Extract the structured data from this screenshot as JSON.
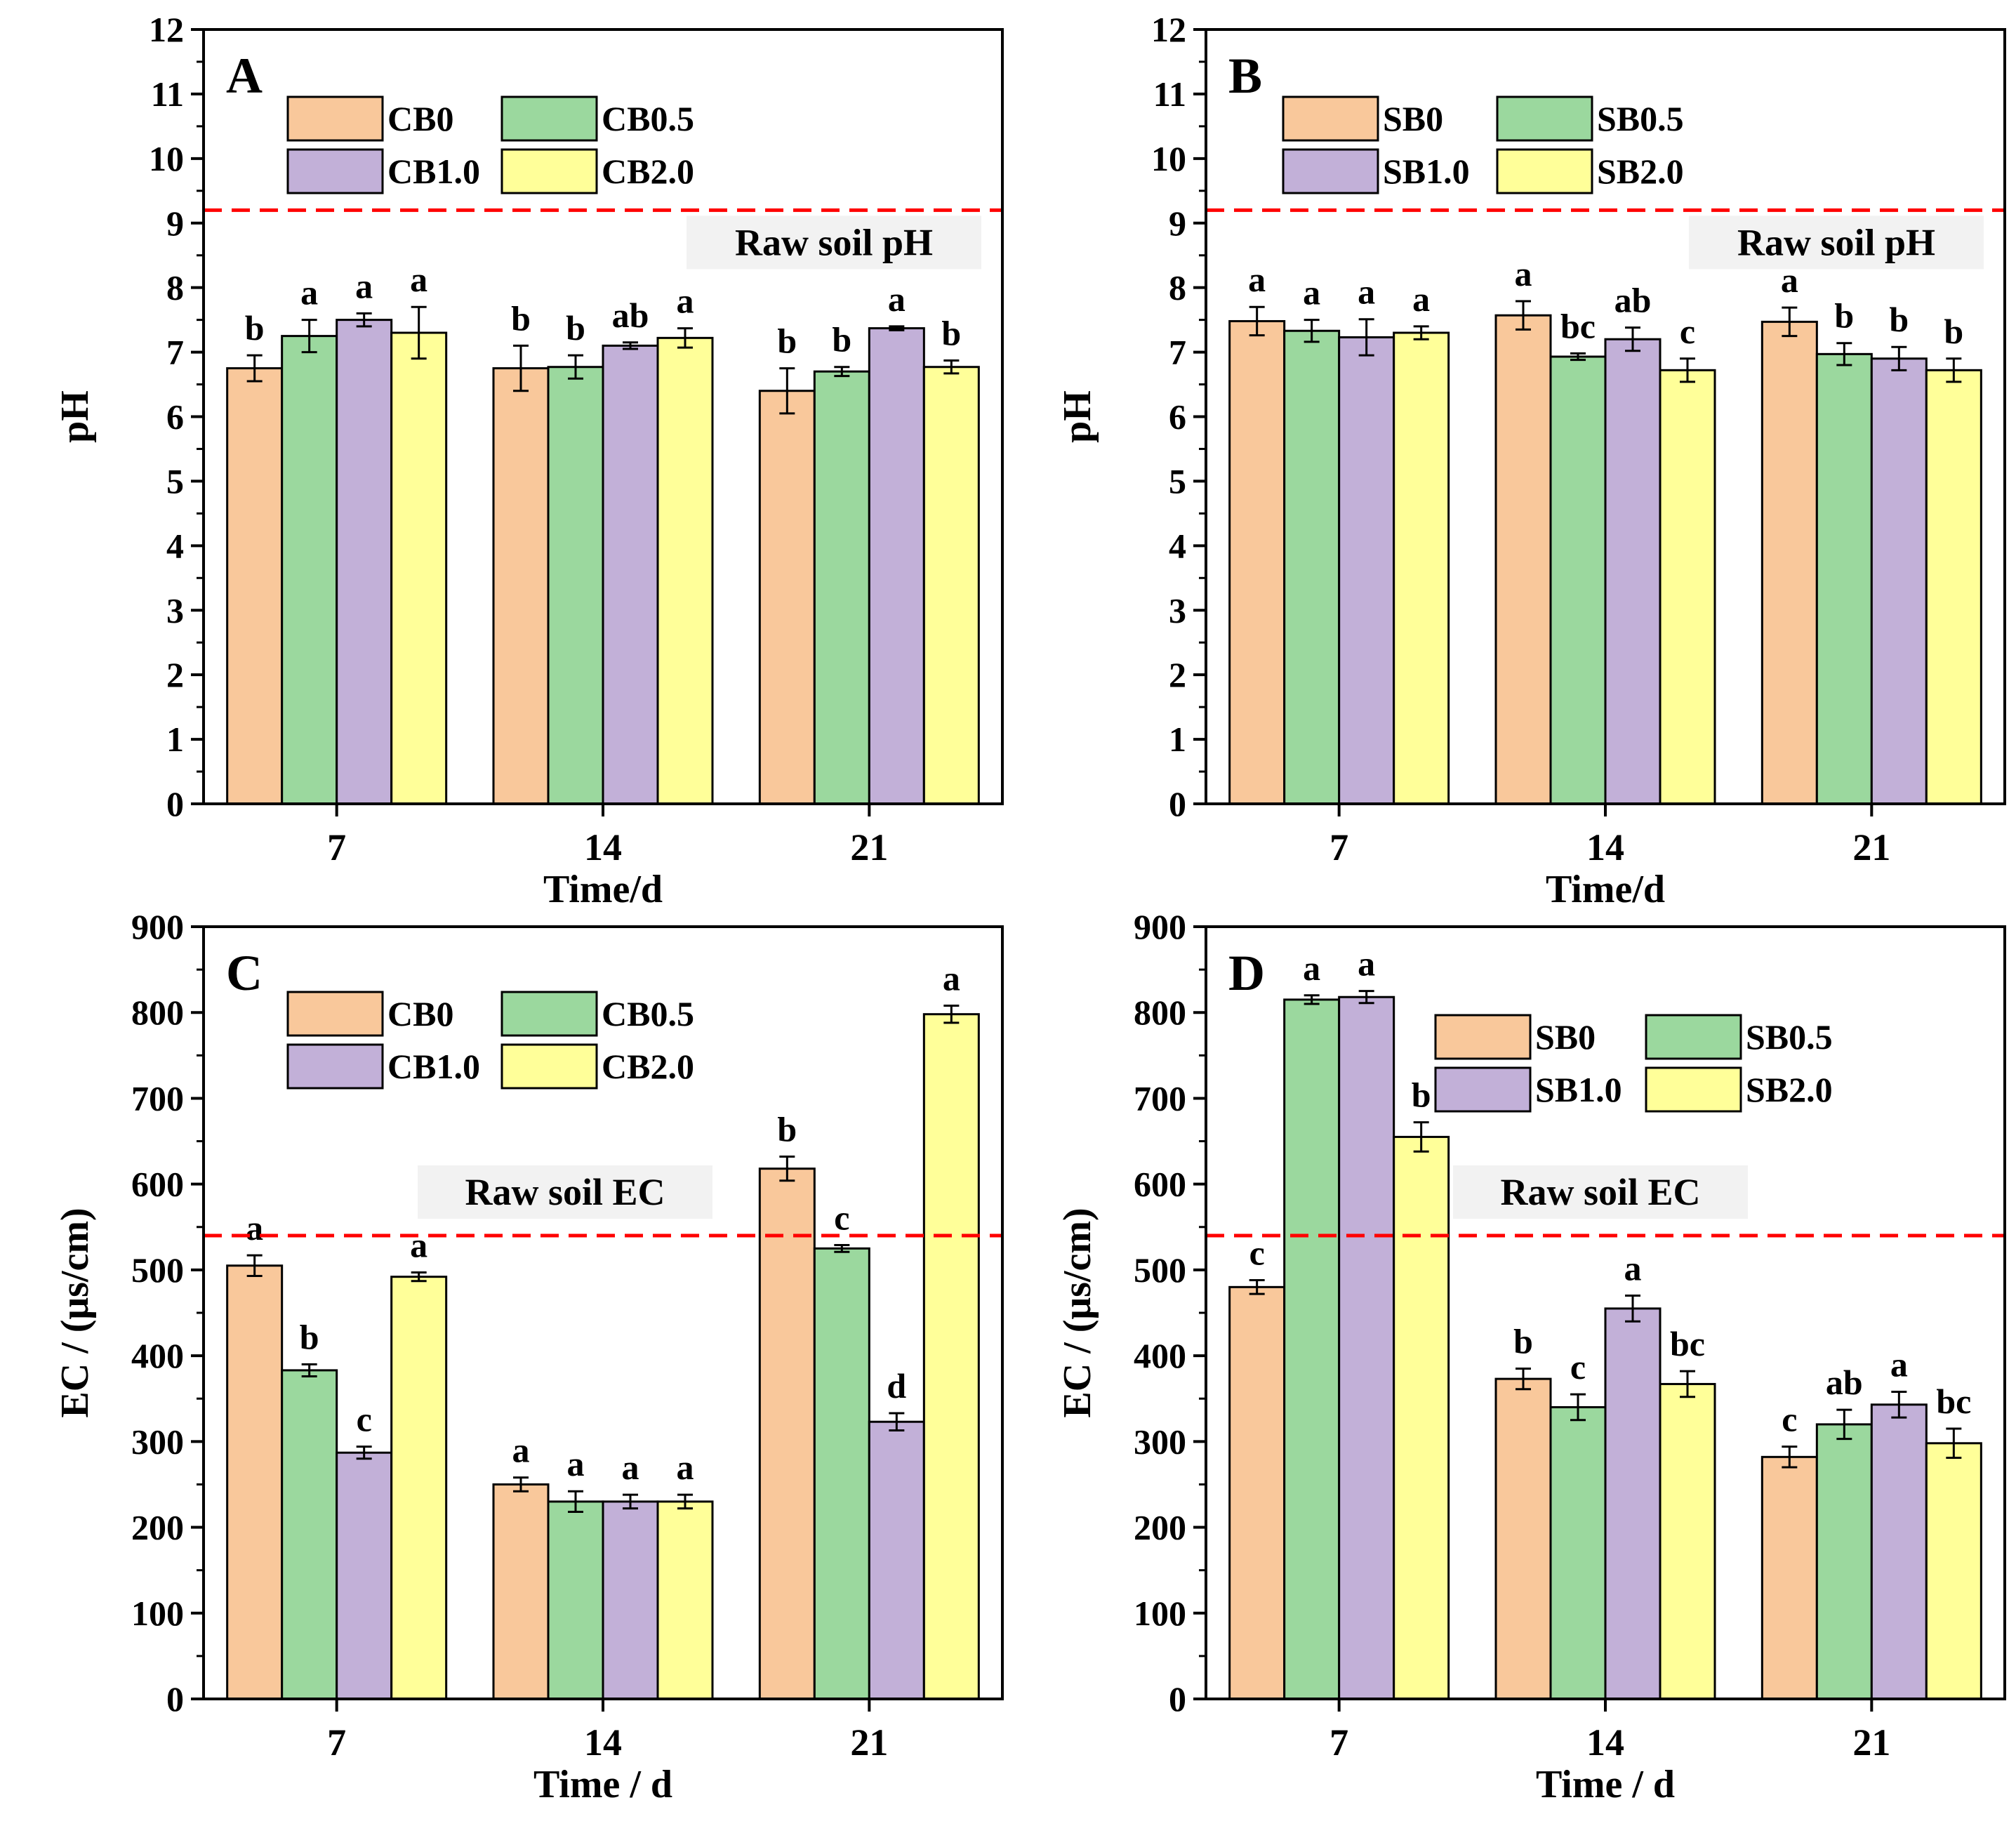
{
  "colors": {
    "series": [
      "#f9c89b",
      "#9bd89e",
      "#c2b0d8",
      "#ffff99"
    ],
    "reference_line": "#ff0000",
    "reference_label_bg": "#f2f2f2"
  },
  "chart_data": [
    {
      "panel": "A",
      "type": "bar",
      "xlabel": "Time/d",
      "ylabel": "pH",
      "categories": [
        "7",
        "14",
        "21"
      ],
      "ylim": [
        0,
        12
      ],
      "yticks": [
        0,
        1,
        2,
        3,
        4,
        5,
        6,
        7,
        8,
        9,
        10,
        11,
        12
      ],
      "legend": [
        "CB0",
        "CB0.5",
        "CB1.0",
        "CB2.0"
      ],
      "series": [
        {
          "name": "CB0",
          "values": [
            6.75,
            6.75,
            6.4
          ],
          "errors": [
            0.2,
            0.35,
            0.35
          ],
          "labels": [
            "b",
            "b",
            "b"
          ]
        },
        {
          "name": "CB0.5",
          "values": [
            7.25,
            6.77,
            6.7
          ],
          "errors": [
            0.25,
            0.18,
            0.07
          ],
          "labels": [
            "a",
            "b",
            "b"
          ]
        },
        {
          "name": "CB1.0",
          "values": [
            7.5,
            7.1,
            7.37
          ],
          "errors": [
            0.1,
            0.05,
            0.03
          ],
          "labels": [
            "a",
            "ab",
            "a"
          ]
        },
        {
          "name": "CB2.0",
          "values": [
            7.3,
            7.22,
            6.77
          ],
          "errors": [
            0.4,
            0.15,
            0.1
          ],
          "labels": [
            "a",
            "a",
            "b"
          ]
        }
      ],
      "reference": {
        "value": 9.2,
        "label": "Raw soil pH"
      }
    },
    {
      "panel": "B",
      "type": "bar",
      "xlabel": "Time/d",
      "ylabel": "pH",
      "categories": [
        "7",
        "14",
        "21"
      ],
      "ylim": [
        0,
        12
      ],
      "yticks": [
        0,
        1,
        2,
        3,
        4,
        5,
        6,
        7,
        8,
        9,
        10,
        11,
        12
      ],
      "legend": [
        "SB0",
        "SB0.5",
        "SB1.0",
        "SB2.0"
      ],
      "series": [
        {
          "name": "SB0",
          "values": [
            7.48,
            7.57,
            7.47
          ],
          "errors": [
            0.22,
            0.22,
            0.22
          ],
          "labels": [
            "a",
            "a",
            "a"
          ]
        },
        {
          "name": "SB0.5",
          "values": [
            7.33,
            6.93,
            6.97
          ],
          "errors": [
            0.17,
            0.05,
            0.17
          ],
          "labels": [
            "a",
            "bc",
            "b"
          ]
        },
        {
          "name": "SB1.0",
          "values": [
            7.23,
            7.2,
            6.9
          ],
          "errors": [
            0.28,
            0.18,
            0.18
          ],
          "labels": [
            "a",
            "ab",
            "b"
          ]
        },
        {
          "name": "SB2.0",
          "values": [
            7.3,
            6.72,
            6.72
          ],
          "errors": [
            0.1,
            0.18,
            0.18
          ],
          "labels": [
            "a",
            "c",
            "b"
          ]
        }
      ],
      "reference": {
        "value": 9.2,
        "label": "Raw soil pH"
      }
    },
    {
      "panel": "C",
      "type": "bar",
      "xlabel": "Time / d",
      "ylabel": "EC / (μs/cm)",
      "categories": [
        "7",
        "14",
        "21"
      ],
      "ylim": [
        0,
        900
      ],
      "yticks": [
        0,
        100,
        200,
        300,
        400,
        500,
        600,
        700,
        800,
        900
      ],
      "legend": [
        "CB0",
        "CB0.5",
        "CB1.0",
        "CB2.0"
      ],
      "series": [
        {
          "name": "CB0",
          "values": [
            505,
            250,
            618
          ],
          "errors": [
            12,
            8,
            14
          ],
          "labels": [
            "a",
            "a",
            "b"
          ]
        },
        {
          "name": "CB0.5",
          "values": [
            383,
            230,
            525
          ],
          "errors": [
            7,
            12,
            4
          ],
          "labels": [
            "b",
            "a",
            "c"
          ]
        },
        {
          "name": "CB1.0",
          "values": [
            287,
            230,
            323
          ],
          "errors": [
            7,
            8,
            10
          ],
          "labels": [
            "c",
            "a",
            "d"
          ]
        },
        {
          "name": "CB2.0",
          "values": [
            492,
            230,
            798
          ],
          "errors": [
            5,
            8,
            10
          ],
          "labels": [
            "a",
            "a",
            "a"
          ]
        }
      ],
      "reference": {
        "value": 540,
        "label": "Raw soil EC"
      }
    },
    {
      "panel": "D",
      "type": "bar",
      "xlabel": "Time / d",
      "ylabel": "EC / (μs/cm)",
      "categories": [
        "7",
        "14",
        "21"
      ],
      "ylim": [
        0,
        900
      ],
      "yticks": [
        0,
        100,
        200,
        300,
        400,
        500,
        600,
        700,
        800,
        900
      ],
      "legend": [
        "SB0",
        "SB0.5",
        "SB1.0",
        "SB2.0"
      ],
      "series": [
        {
          "name": "SB0",
          "values": [
            480,
            373,
            282
          ],
          "errors": [
            8,
            12,
            12
          ],
          "labels": [
            "c",
            "b",
            "c"
          ]
        },
        {
          "name": "SB0.5",
          "values": [
            815,
            340,
            320
          ],
          "errors": [
            5,
            15,
            17
          ],
          "labels": [
            "a",
            "c",
            "ab"
          ]
        },
        {
          "name": "SB1.0",
          "values": [
            818,
            455,
            343
          ],
          "errors": [
            7,
            15,
            15
          ],
          "labels": [
            "a",
            "a",
            "a"
          ]
        },
        {
          "name": "SB2.0",
          "values": [
            655,
            367,
            298
          ],
          "errors": [
            17,
            15,
            17
          ],
          "labels": [
            "b",
            "bc",
            "bc"
          ]
        }
      ],
      "reference": {
        "value": 540,
        "label": "Raw soil EC"
      }
    }
  ]
}
